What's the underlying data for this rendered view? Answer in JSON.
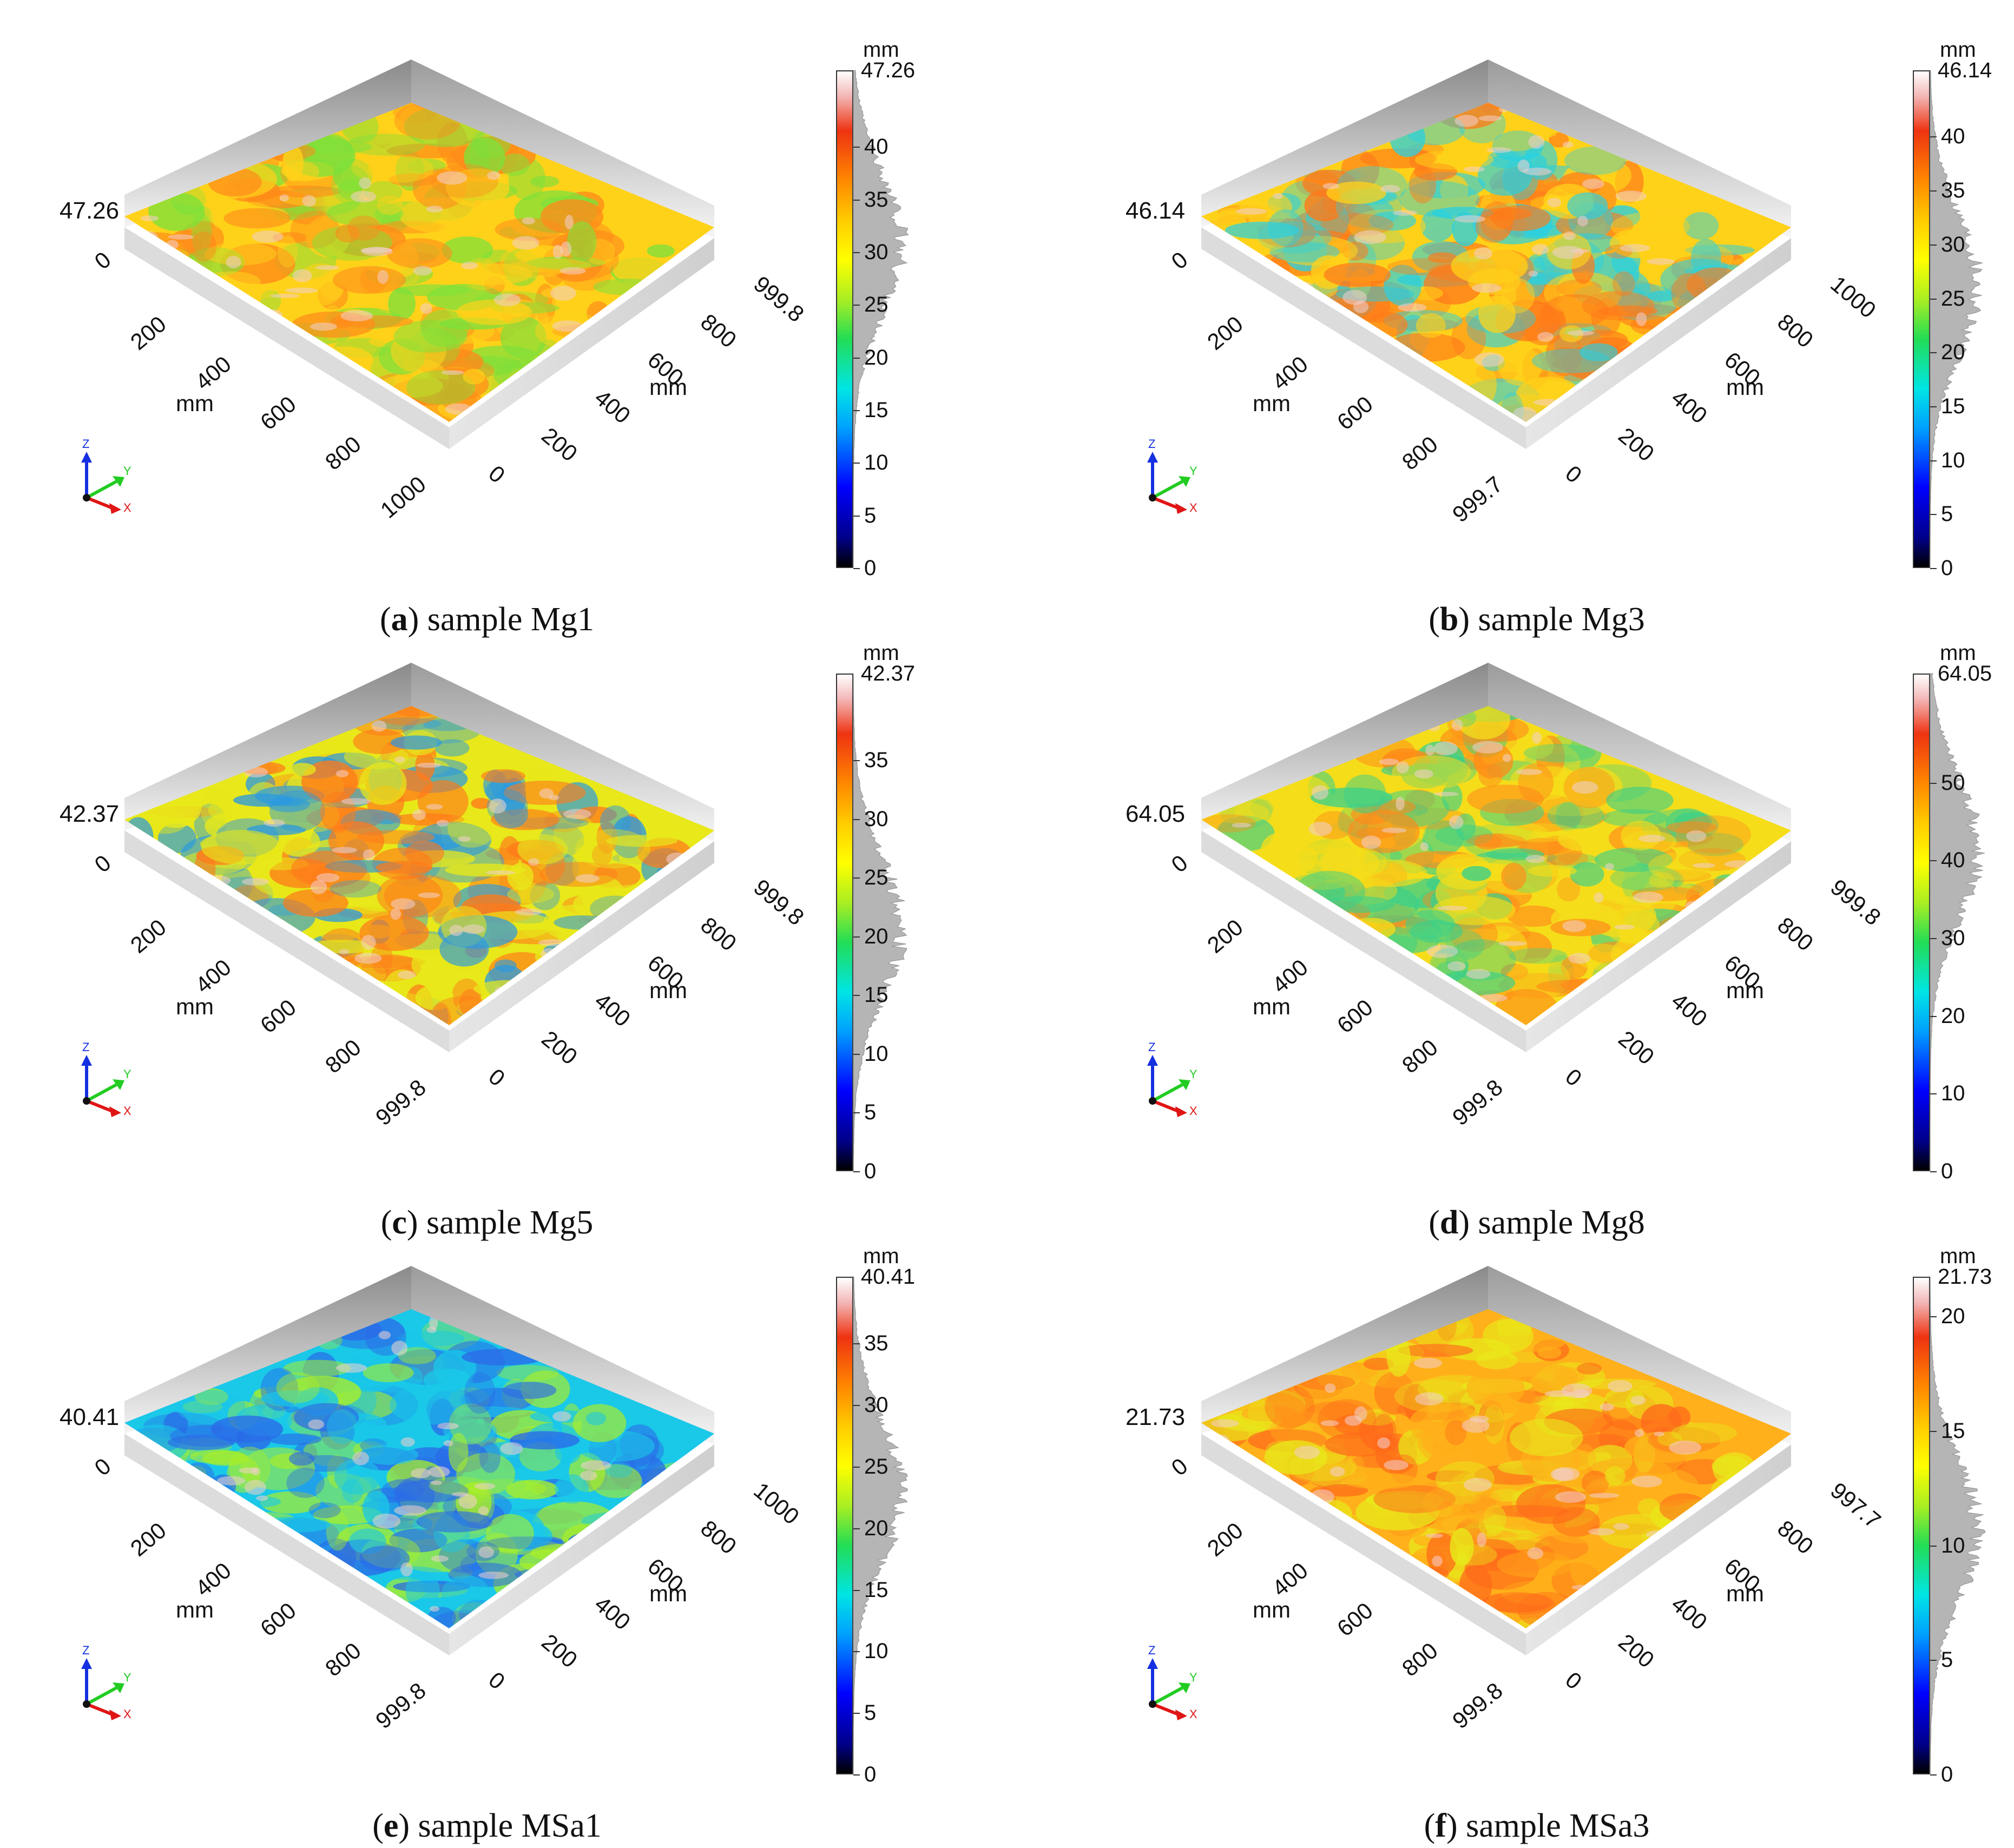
{
  "panels": [
    {
      "id": "a",
      "letter": "a",
      "caption": "sample Mg1",
      "zmax": "47.26",
      "zero_label": "0",
      "axis_unit": "mm",
      "x_ticks": [
        "200",
        "400",
        "600",
        "800",
        "1000"
      ],
      "y_ticks": [
        "0",
        "200",
        "400",
        "600",
        "800",
        "999.8"
      ],
      "colorbar": {
        "unit": "mm",
        "max_label": "47.26",
        "max": 47.26,
        "ticks": [
          0,
          5,
          10,
          15,
          20,
          25,
          30,
          35,
          40
        ]
      },
      "dominant": [
        "#ffd21a",
        "#ff8a1a",
        "#7fe03a"
      ]
    },
    {
      "id": "b",
      "letter": "b",
      "caption": "sample Mg3",
      "zmax": "46.14",
      "zero_label": "0",
      "axis_unit": "mm",
      "x_ticks": [
        "200",
        "400",
        "600",
        "800",
        "999.7"
      ],
      "y_ticks": [
        "0",
        "200",
        "400",
        "600",
        "800",
        "1000"
      ],
      "colorbar": {
        "unit": "mm",
        "max_label": "46.14",
        "max": 46.14,
        "ticks": [
          0,
          5,
          10,
          15,
          20,
          25,
          30,
          35,
          40
        ]
      },
      "dominant": [
        "#ffd21a",
        "#ff7a1a",
        "#2ad0e0"
      ]
    },
    {
      "id": "c",
      "letter": "c",
      "caption": "sample Mg5",
      "zmax": "42.37",
      "zero_label": "0",
      "axis_unit": "mm",
      "x_ticks": [
        "200",
        "400",
        "600",
        "800",
        "999.8"
      ],
      "y_ticks": [
        "0",
        "200",
        "400",
        "600",
        "800",
        "999.8"
      ],
      "colorbar": {
        "unit": "mm",
        "max_label": "42.37",
        "max": 42.37,
        "ticks": [
          0,
          5,
          10,
          15,
          20,
          25,
          30,
          35
        ]
      },
      "dominant": [
        "#e8e81a",
        "#ff7a1a",
        "#2a9ae0"
      ]
    },
    {
      "id": "d",
      "letter": "d",
      "caption": "sample Mg8",
      "zmax": "64.05",
      "zero_label": "0",
      "axis_unit": "mm",
      "x_ticks": [
        "200",
        "400",
        "600",
        "800",
        "999.8"
      ],
      "y_ticks": [
        "0",
        "200",
        "400",
        "600",
        "800",
        "999.8"
      ],
      "colorbar": {
        "unit": "mm",
        "max_label": "64.05",
        "max": 64.05,
        "ticks": [
          0,
          10,
          20,
          30,
          40,
          50
        ]
      },
      "dominant": [
        "#f5dd1a",
        "#ff8a1a",
        "#3ad08a"
      ]
    },
    {
      "id": "e",
      "letter": "e",
      "caption": "sample MSa1",
      "zmax": "40.41",
      "zero_label": "0",
      "axis_unit": "mm",
      "x_ticks": [
        "200",
        "400",
        "600",
        "800",
        "999.8"
      ],
      "y_ticks": [
        "0",
        "200",
        "400",
        "600",
        "800",
        "1000"
      ],
      "colorbar": {
        "unit": "mm",
        "max_label": "40.41",
        "max": 40.41,
        "ticks": [
          0,
          5,
          10,
          15,
          20,
          25,
          30,
          35
        ]
      },
      "dominant": [
        "#1ac8e8",
        "#2a6ae8",
        "#a8ee2a"
      ]
    },
    {
      "id": "f",
      "letter": "f",
      "caption": "sample MSa3",
      "zmax": "21.73",
      "zero_label": "0",
      "axis_unit": "mm",
      "x_ticks": [
        "200",
        "400",
        "600",
        "800",
        "999.8"
      ],
      "y_ticks": [
        "0",
        "200",
        "400",
        "600",
        "800",
        "997.7"
      ],
      "colorbar": {
        "unit": "mm",
        "max_label": "21.73",
        "max": 21.73,
        "ticks": [
          0,
          5,
          10,
          15,
          20
        ]
      },
      "dominant": [
        "#ffb01a",
        "#ff6a1a",
        "#e8e81a"
      ]
    }
  ],
  "triad_labels": {
    "z": "Z",
    "y": "Y",
    "x": "X"
  }
}
